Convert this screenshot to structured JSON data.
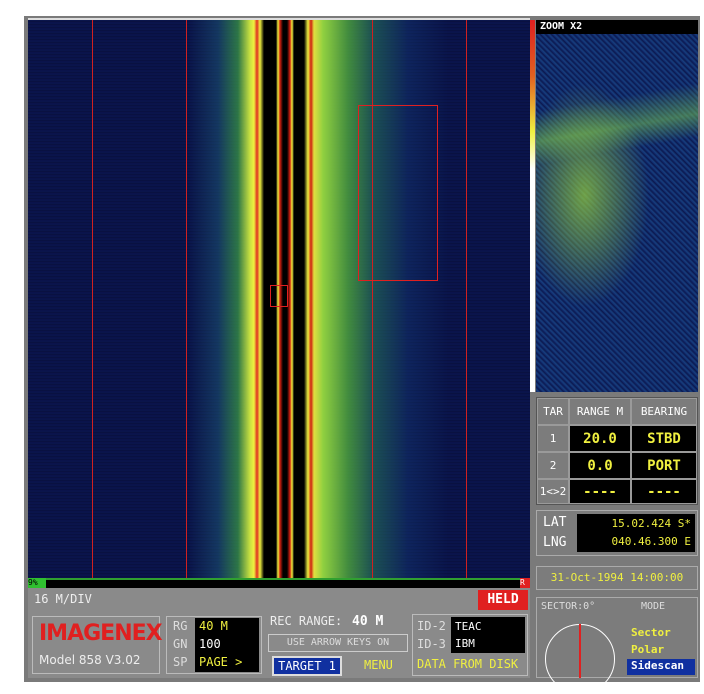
{
  "zoom_label": "ZOOM X2",
  "targets": {
    "headers": [
      "TAR",
      "RANGE M",
      "BEARING"
    ],
    "rows": [
      [
        "1",
        "20.0",
        "STBD"
      ],
      [
        "2",
        "0.0",
        "PORT"
      ],
      [
        "1<>2",
        "----",
        "----"
      ]
    ]
  },
  "position": {
    "lat_label": "LAT",
    "lat": "15.02.424 S*",
    "lng_label": "LNG",
    "lng": "040.46.300 E"
  },
  "datetime": "31-Oct-1994 14:00:00",
  "status_bar": {
    "left": "9%",
    "right": "R"
  },
  "scale": "16 M/DIV",
  "held": "HELD",
  "brand": {
    "logo": "IMAGENEX",
    "model": "Model 858 V3.02"
  },
  "settings": {
    "labels": [
      "RG",
      "GN",
      "SP"
    ],
    "values": [
      "40 M",
      "100",
      "PAGE >"
    ]
  },
  "rec_range": {
    "label": "REC RANGE:",
    "value": "40 M"
  },
  "hint": "USE ARROW KEYS ON",
  "target_button": "TARGET 1",
  "menu": "MENU",
  "ids": {
    "labels": [
      "ID-2",
      "ID-3"
    ],
    "values": [
      "TEAC",
      "IBM"
    ],
    "source": "DATA FROM DISK"
  },
  "mode_panel": {
    "sector": "SECTOR:0°",
    "mode": "MODE",
    "options": [
      "Sector",
      "Polar",
      "Sidescan"
    ]
  }
}
